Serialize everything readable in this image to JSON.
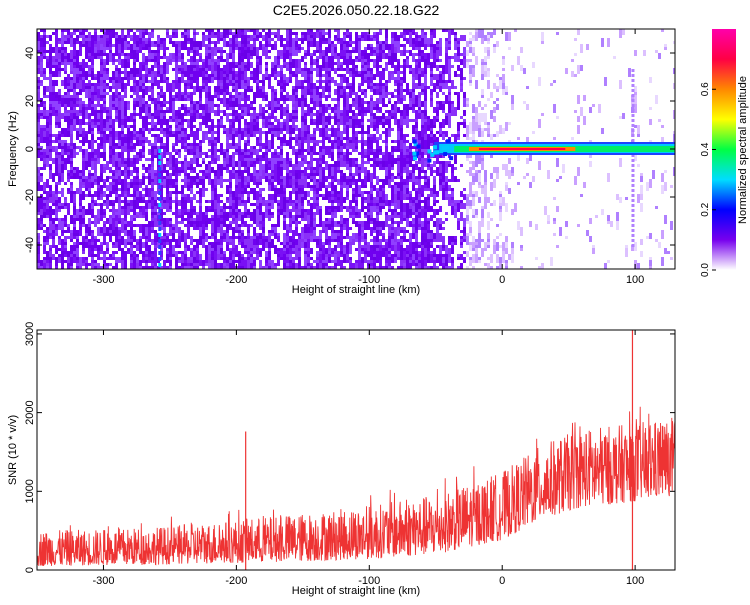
{
  "title": "C2E5.2026.050.22.18.G22",
  "chart_data": [
    {
      "type": "heatmap",
      "xlabel": "Height of straight line (km)",
      "ylabel": "Frequency (Hz)",
      "xlim": [
        -350,
        130
      ],
      "ylim": [
        -50,
        50
      ],
      "x_ticks": [
        -300,
        -200,
        -100,
        0,
        100
      ],
      "y_ticks": [
        -40,
        -20,
        0,
        20,
        40
      ],
      "colorbar": {
        "label": "Normalized spectral amplitude",
        "range": [
          0,
          0.8
        ],
        "ticks": [
          0.0,
          0.2,
          0.4,
          0.6
        ],
        "colors": [
          "#ffffff",
          "#7700ee",
          "#0000ff",
          "#00ddff",
          "#00ff44",
          "#ffff00",
          "#ff8800",
          "#ff0044",
          "#ff00aa"
        ]
      },
      "features": {
        "noise_region_x": [
          -350,
          -60
        ],
        "fade_region_x": [
          -60,
          20
        ],
        "signal_band": {
          "x_start": -70,
          "x_end": 130,
          "center_hz": 0,
          "peak_x_range": [
            -25,
            55
          ]
        },
        "vertical_line_x": -258,
        "spike_x": 98
      }
    },
    {
      "type": "line",
      "xlabel": "Height of straight line (km)",
      "ylabel": "SNR (10 * v/v)",
      "xlim": [
        -350,
        130
      ],
      "ylim": [
        0,
        3050
      ],
      "x_ticks": [
        -300,
        -200,
        -100,
        0,
        100
      ],
      "y_ticks": [
        0,
        1000,
        2000,
        3000
      ],
      "color": "#ee3333",
      "envelope": [
        {
          "x": -350,
          "low": 50,
          "high": 500
        },
        {
          "x": -300,
          "low": 60,
          "high": 520
        },
        {
          "x": -250,
          "low": 70,
          "high": 560
        },
        {
          "x": -200,
          "low": 90,
          "high": 640
        },
        {
          "x": -150,
          "low": 110,
          "high": 720
        },
        {
          "x": -100,
          "low": 140,
          "high": 820
        },
        {
          "x": -50,
          "low": 200,
          "high": 960
        },
        {
          "x": 0,
          "low": 380,
          "high": 1250
        },
        {
          "x": 30,
          "low": 650,
          "high": 1600
        },
        {
          "x": 60,
          "low": 800,
          "high": 1800
        },
        {
          "x": 90,
          "low": 850,
          "high": 1850
        },
        {
          "x": 130,
          "low": 950,
          "high": 1950
        }
      ],
      "spikes": [
        {
          "x": -193,
          "y": 1760
        },
        {
          "x": 98,
          "y": 3050
        },
        {
          "x": 98,
          "y": 20
        }
      ]
    }
  ]
}
